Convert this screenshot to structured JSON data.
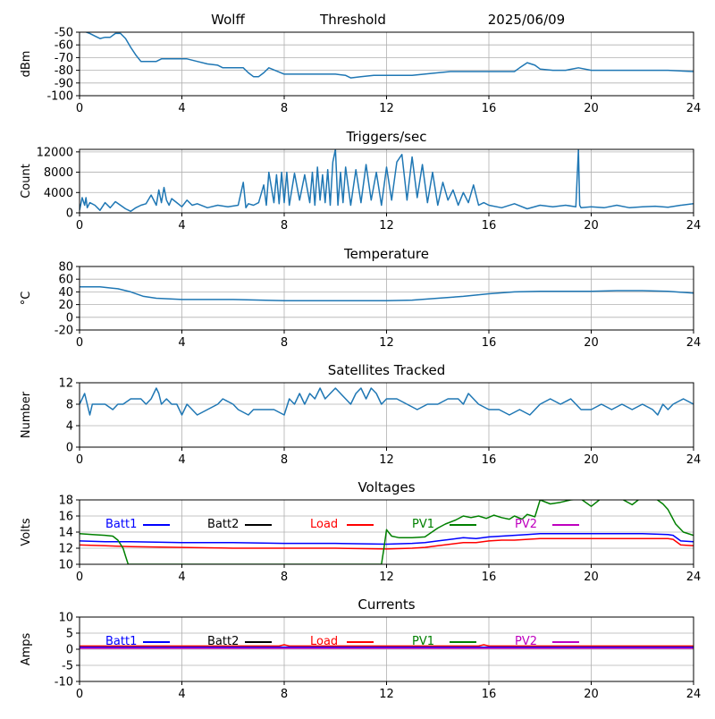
{
  "header": {
    "station": "Wolff",
    "mode": "Threshold",
    "date": "2025/06/09"
  },
  "x_axis": {
    "ticks": [
      0,
      4,
      8,
      12,
      16,
      20,
      24
    ],
    "xlim": [
      0,
      24
    ]
  },
  "colors": {
    "series": "#1f77b4",
    "batt1": "#0000ff",
    "batt2": "#000000",
    "load": "#ff0000",
    "pv1": "#008000",
    "pv2": "#bf00bf",
    "grid": "#b0b0b0"
  },
  "chart_data": [
    {
      "id": "rssi",
      "type": "line",
      "title": "",
      "xlabel": "",
      "ylabel": "dBm",
      "ylim": [
        -100,
        -50
      ],
      "yticks": [
        -50,
        -60,
        -70,
        -80,
        -90,
        -100
      ],
      "grid": true,
      "series": [
        {
          "x": [
            0,
            0.4,
            0.6,
            0.8,
            1.0,
            1.2,
            1.4,
            1.6,
            1.8,
            2.0,
            2.2,
            2.4,
            2.6,
            3.0,
            3.2,
            3.6,
            4.0,
            4.2,
            4.6,
            5.0,
            5.4,
            5.6,
            6.0,
            6.4,
            6.6,
            6.8,
            7.0,
            7.2,
            7.4,
            8.0,
            9.0,
            10.0,
            10.4,
            10.6,
            11.0,
            11.5,
            12.0,
            13.0,
            14.0,
            14.5,
            15.0,
            16.0,
            17.0,
            17.2,
            17.5,
            17.8,
            18.0,
            18.5,
            19.0,
            19.5,
            20.0,
            21.0,
            22.0,
            23.0,
            24.0
          ],
          "y": [
            -48,
            -51,
            -53,
            -55,
            -54,
            -54,
            -51,
            -51,
            -55,
            -62,
            -68,
            -73,
            -73,
            -73,
            -71,
            -71,
            -71,
            -71,
            -73,
            -75,
            -76,
            -78,
            -78,
            -78,
            -82,
            -85,
            -85,
            -82,
            -78,
            -83,
            -83,
            -83,
            -84,
            -86,
            -85,
            -84,
            -84,
            -84,
            -82,
            -81,
            -81,
            -81,
            -81,
            -78,
            -74,
            -76,
            -79,
            -80,
            -80,
            -78,
            -80,
            -80,
            -80,
            -80,
            -81
          ]
        }
      ]
    },
    {
      "id": "triggers",
      "type": "line",
      "title": "Triggers/sec",
      "xlabel": "",
      "ylabel": "Count",
      "ylim": [
        0,
        12500
      ],
      "yticks": [
        0,
        4000,
        8000,
        12000
      ],
      "grid": true,
      "series": [
        {
          "x": [
            0,
            0.1,
            0.2,
            0.25,
            0.3,
            0.4,
            0.6,
            0.8,
            1.0,
            1.2,
            1.4,
            1.6,
            1.8,
            2.0,
            2.2,
            2.4,
            2.6,
            2.8,
            3.0,
            3.1,
            3.2,
            3.3,
            3.4,
            3.5,
            3.6,
            3.8,
            4.0,
            4.2,
            4.4,
            4.6,
            5.0,
            5.4,
            5.8,
            6.2,
            6.4,
            6.5,
            6.6,
            6.8,
            7.0,
            7.2,
            7.3,
            7.4,
            7.6,
            7.7,
            7.8,
            7.9,
            8.0,
            8.1,
            8.2,
            8.4,
            8.6,
            8.8,
            9.0,
            9.1,
            9.2,
            9.3,
            9.4,
            9.5,
            9.6,
            9.7,
            9.8,
            9.9,
            10.0,
            10.1,
            10.2,
            10.3,
            10.4,
            10.6,
            10.8,
            11.0,
            11.2,
            11.4,
            11.6,
            11.8,
            12.0,
            12.2,
            12.4,
            12.6,
            12.8,
            13.0,
            13.2,
            13.4,
            13.6,
            13.8,
            14.0,
            14.2,
            14.4,
            14.6,
            14.8,
            15.0,
            15.2,
            15.4,
            15.6,
            15.8,
            16.0,
            16.5,
            17.0,
            17.5,
            18.0,
            18.5,
            19.0,
            19.4,
            19.5,
            19.55,
            19.6,
            20.0,
            20.5,
            21.0,
            21.5,
            22.0,
            22.5,
            23.0,
            23.5,
            24.0
          ],
          "y": [
            500,
            3000,
            1500,
            3000,
            1000,
            2000,
            1500,
            500,
            2000,
            1000,
            2200,
            1500,
            800,
            300,
            1000,
            1500,
            1800,
            3500,
            1500,
            4500,
            2000,
            5000,
            2500,
            1500,
            2800,
            2000,
            1200,
            2500,
            1500,
            1800,
            1000,
            1500,
            1200,
            1500,
            6000,
            1000,
            1800,
            1500,
            2000,
            5500,
            1500,
            8000,
            2000,
            7500,
            1800,
            8000,
            2000,
            8000,
            1500,
            7800,
            2500,
            7500,
            2000,
            8000,
            1500,
            9000,
            2500,
            7500,
            2000,
            8500,
            1500,
            10000,
            12500,
            1500,
            8000,
            2000,
            9000,
            1500,
            8500,
            2000,
            9500,
            2500,
            8000,
            1500,
            9000,
            2500,
            10000,
            11500,
            2500,
            11000,
            3000,
            9500,
            2000,
            8000,
            1500,
            6000,
            2500,
            4500,
            1500,
            4000,
            2000,
            5500,
            1500,
            2000,
            1500,
            1000,
            1800,
            800,
            1500,
            1200,
            1500,
            1200,
            12500,
            1500,
            1000,
            1200,
            1000,
            1500,
            1000,
            1200,
            1300,
            1100,
            1500,
            1800
          ]
        }
      ]
    },
    {
      "id": "temperature",
      "type": "line",
      "title": "Temperature",
      "xlabel": "",
      "ylabel": "°C",
      "ylim": [
        -20,
        80
      ],
      "yticks": [
        -20,
        0,
        20,
        40,
        60,
        80
      ],
      "grid": true,
      "series": [
        {
          "x": [
            0,
            0.8,
            1.5,
            2.0,
            2.5,
            3.0,
            4.0,
            6.0,
            8.0,
            10.0,
            12.0,
            13.0,
            14.0,
            15.0,
            16.0,
            17.0,
            18.0,
            19.0,
            20.0,
            21.0,
            22.0,
            23.0,
            24.0
          ],
          "y": [
            48,
            48,
            45,
            40,
            33,
            30,
            28,
            28,
            26,
            26,
            26,
            27,
            30,
            33,
            37,
            40,
            41,
            41,
            41,
            42,
            42,
            41,
            38
          ]
        }
      ]
    },
    {
      "id": "satellites",
      "type": "line",
      "title": "Satellites Tracked",
      "xlabel": "",
      "ylabel": "Number",
      "ylim": [
        0,
        12
      ],
      "yticks": [
        0,
        4,
        8,
        12
      ],
      "grid": true,
      "series": [
        {
          "x": [
            0,
            0.1,
            0.2,
            0.3,
            0.4,
            0.5,
            0.8,
            1.0,
            1.3,
            1.5,
            1.7,
            2.0,
            2.2,
            2.4,
            2.6,
            2.8,
            3.0,
            3.1,
            3.2,
            3.4,
            3.6,
            3.8,
            4.0,
            4.2,
            4.4,
            4.6,
            5.0,
            5.4,
            5.6,
            6.0,
            6.2,
            6.6,
            6.8,
            7.0,
            7.2,
            7.6,
            8.0,
            8.2,
            8.4,
            8.6,
            8.8,
            9.0,
            9.2,
            9.4,
            9.6,
            9.8,
            10.0,
            10.2,
            10.4,
            10.6,
            10.8,
            11.0,
            11.2,
            11.4,
            11.6,
            11.8,
            12.0,
            12.4,
            12.8,
            13.2,
            13.6,
            14.0,
            14.4,
            14.8,
            15.0,
            15.2,
            15.6,
            16.0,
            16.4,
            16.8,
            17.2,
            17.6,
            18.0,
            18.4,
            18.8,
            19.2,
            19.6,
            20.0,
            20.4,
            20.8,
            21.2,
            21.6,
            22.0,
            22.4,
            22.6,
            22.8,
            23.0,
            23.2,
            23.6,
            24.0
          ],
          "y": [
            8,
            9,
            10,
            8,
            6,
            8,
            8,
            8,
            7,
            8,
            8,
            9,
            9,
            9,
            8,
            9,
            11,
            10,
            8,
            9,
            8,
            8,
            6,
            8,
            7,
            6,
            7,
            8,
            9,
            8,
            7,
            6,
            7,
            7,
            7,
            7,
            6,
            9,
            8,
            10,
            8,
            10,
            9,
            11,
            9,
            10,
            11,
            10,
            9,
            8,
            10,
            11,
            9,
            11,
            10,
            8,
            9,
            9,
            8,
            7,
            8,
            8,
            9,
            9,
            8,
            10,
            8,
            7,
            7,
            6,
            7,
            6,
            8,
            9,
            8,
            9,
            7,
            7,
            8,
            7,
            8,
            7,
            8,
            7,
            6,
            8,
            7,
            8,
            9,
            8
          ]
        }
      ]
    },
    {
      "id": "voltages",
      "type": "line",
      "title": "Voltages",
      "xlabel": "",
      "ylabel": "Volts",
      "ylim": [
        10,
        18
      ],
      "yticks": [
        10,
        12,
        14,
        16,
        18
      ],
      "grid": true,
      "legend": [
        "Batt1",
        "Batt2",
        "Load",
        "PV1",
        "PV2"
      ],
      "series": [
        {
          "name": "Batt1",
          "color": "#0000ff",
          "x": [
            0,
            1,
            2,
            4,
            6,
            8,
            10,
            12,
            13,
            13.5,
            14,
            14.5,
            15,
            15.5,
            16,
            16.5,
            17,
            17.5,
            18,
            20,
            22,
            23,
            23.2,
            23.5,
            24
          ],
          "y": [
            12.9,
            12.8,
            12.8,
            12.7,
            12.7,
            12.6,
            12.6,
            12.5,
            12.6,
            12.7,
            12.9,
            13.1,
            13.3,
            13.2,
            13.4,
            13.5,
            13.6,
            13.7,
            13.8,
            13.8,
            13.8,
            13.7,
            13.6,
            12.9,
            12.8
          ]
        },
        {
          "name": "Load",
          "color": "#ff0000",
          "x": [
            0,
            1,
            2,
            4,
            6,
            8,
            10,
            12,
            13,
            13.5,
            14,
            14.5,
            15,
            15.5,
            16,
            16.5,
            17,
            17.5,
            18,
            20,
            22,
            23,
            23.2,
            23.5,
            24
          ],
          "y": [
            12.4,
            12.3,
            12.2,
            12.1,
            12.0,
            12.0,
            12.0,
            11.9,
            12.0,
            12.1,
            12.3,
            12.5,
            12.7,
            12.7,
            12.9,
            13.0,
            13.0,
            13.1,
            13.2,
            13.2,
            13.2,
            13.2,
            13.1,
            12.4,
            12.3
          ]
        },
        {
          "name": "PV1",
          "color": "#008000",
          "x": [
            0,
            0.5,
            1.0,
            1.3,
            1.5,
            1.7,
            1.8,
            1.9,
            11.8,
            11.9,
            12.0,
            12.2,
            12.5,
            13.0,
            13.5,
            14.0,
            14.3,
            14.7,
            15.0,
            15.3,
            15.6,
            15.9,
            16.2,
            16.5,
            16.8,
            17.0,
            17.3,
            17.5,
            17.8,
            18.0,
            18.4,
            18.8,
            19.2,
            19.6,
            20.0,
            20.4,
            20.8,
            21.2,
            21.6,
            22.0,
            22.5,
            22.8,
            23.0,
            23.3,
            23.6,
            24.0
          ],
          "y": [
            13.8,
            13.7,
            13.6,
            13.5,
            13.0,
            12.0,
            11.0,
            10.0,
            10.0,
            12.0,
            14.3,
            13.5,
            13.3,
            13.3,
            13.4,
            14.5,
            15.0,
            15.5,
            16.0,
            15.8,
            16.0,
            15.7,
            16.1,
            15.8,
            15.6,
            16.0,
            15.6,
            16.2,
            15.9,
            18.0,
            17.5,
            17.7,
            18.0,
            18.1,
            17.2,
            18.2,
            18.3,
            18.1,
            17.4,
            18.4,
            18.2,
            17.5,
            16.8,
            15.0,
            14.0,
            13.6
          ]
        }
      ]
    },
    {
      "id": "currents",
      "type": "line",
      "title": "Currents",
      "xlabel": "",
      "ylabel": "Amps",
      "ylim": [
        -10,
        10
      ],
      "yticks": [
        -10,
        -5,
        0,
        5,
        10
      ],
      "grid": true,
      "legend": [
        "Batt1",
        "Batt2",
        "Load",
        "PV1",
        "PV2"
      ],
      "series": [
        {
          "name": "Load",
          "color": "#ff0000",
          "x": [
            0,
            4,
            7.8,
            8.0,
            8.2,
            12,
            15.6,
            15.8,
            16.0,
            20,
            24
          ],
          "y": [
            1.0,
            1.0,
            1.0,
            1.4,
            1.0,
            1.0,
            1.0,
            1.4,
            1.0,
            1.0,
            1.0
          ]
        },
        {
          "name": "Batt1",
          "color": "#0000ff",
          "x": [
            0,
            8,
            12,
            16,
            20,
            24
          ],
          "y": [
            0.6,
            0.6,
            0.6,
            0.6,
            0.6,
            0.6
          ]
        },
        {
          "name": "PV2",
          "color": "#bf00bf",
          "x": [
            0,
            8,
            12,
            16,
            20,
            24
          ],
          "y": [
            0.3,
            0.3,
            0.3,
            0.3,
            0.3,
            0.3
          ]
        }
      ]
    }
  ]
}
